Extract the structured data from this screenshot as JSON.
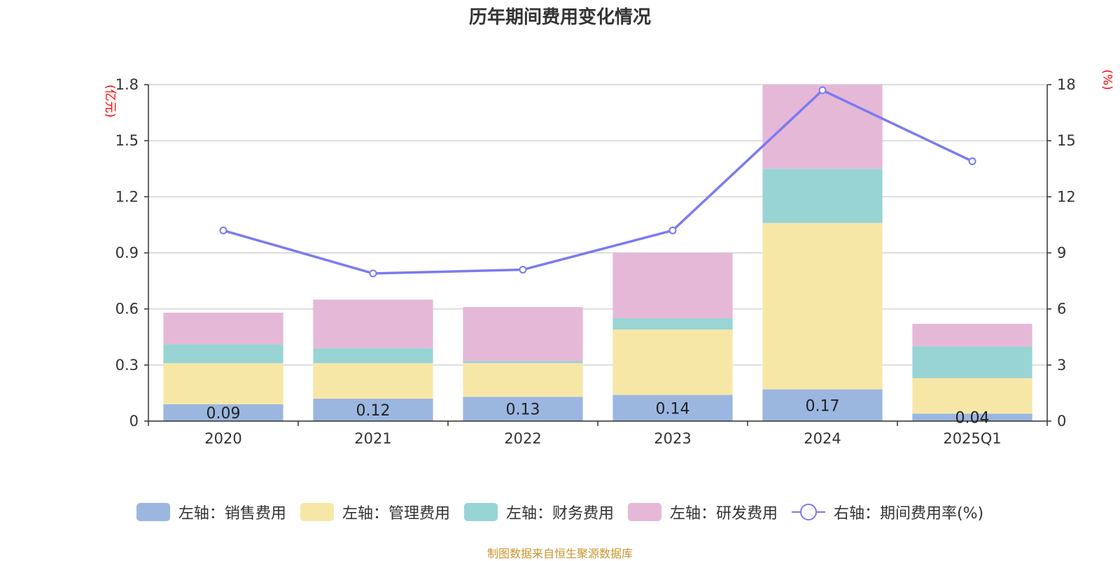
{
  "chart_data": {
    "type": "bar",
    "title": "历年期间费用变化情况",
    "left_axis_unit": "(亿元)",
    "right_axis_unit": "(%)",
    "categories": [
      "2020",
      "2021",
      "2022",
      "2023",
      "2024",
      "2025Q1"
    ],
    "left_ylim": [
      0,
      1.8
    ],
    "left_ticks": [
      "0",
      "0.3",
      "0.6",
      "0.9",
      "1.2",
      "1.5",
      "1.8"
    ],
    "right_ylim": [
      0,
      18
    ],
    "right_ticks": [
      "0",
      "3",
      "6",
      "9",
      "12",
      "15",
      "18"
    ],
    "series": [
      {
        "name": "左轴：销售费用",
        "kind": "bar",
        "color": "#9bb7e0",
        "values": [
          0.09,
          0.12,
          0.13,
          0.14,
          0.17,
          0.04
        ],
        "labels": [
          "0.09",
          "0.12",
          "0.13",
          "0.14",
          "0.17",
          "0.04"
        ]
      },
      {
        "name": "左轴：管理费用",
        "kind": "bar",
        "color": "#f7e7a7",
        "values": [
          0.22,
          0.19,
          0.18,
          0.35,
          0.89,
          0.19
        ]
      },
      {
        "name": "左轴：财务费用",
        "kind": "bar",
        "color": "#98d4d4",
        "values": [
          0.1,
          0.08,
          0.01,
          0.06,
          0.29,
          0.17
        ]
      },
      {
        "name": "左轴：研发费用",
        "kind": "bar",
        "color": "#e6b8d8",
        "values": [
          0.17,
          0.26,
          0.29,
          0.35,
          0.45,
          0.12
        ]
      },
      {
        "name": "右轴：期间费用率(%)",
        "kind": "line",
        "color": "#7b7bef",
        "values": [
          10.2,
          7.9,
          8.1,
          10.2,
          17.7,
          13.9
        ]
      }
    ]
  },
  "source": "制图数据来自恒生聚源数据库"
}
